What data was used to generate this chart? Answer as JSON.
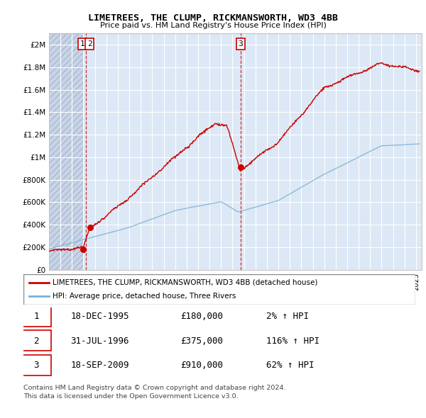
{
  "title": "LIMETREES, THE CLUMP, RICKMANSWORTH, WD3 4BB",
  "subtitle": "Price paid vs. HM Land Registry's House Price Index (HPI)",
  "ylim": [
    0,
    2100000
  ],
  "yticks": [
    0,
    200000,
    400000,
    600000,
    800000,
    1000000,
    1200000,
    1400000,
    1600000,
    1800000,
    2000000
  ],
  "ytick_labels": [
    "£0",
    "£200K",
    "£400K",
    "£600K",
    "£800K",
    "£1M",
    "£1.2M",
    "£1.4M",
    "£1.6M",
    "£1.8M",
    "£2M"
  ],
  "xlim_start": 1993.0,
  "xlim_end": 2025.5,
  "sale_dates": [
    1995.96,
    1996.58,
    2009.72
  ],
  "sale_prices": [
    180000,
    375000,
    910000
  ],
  "sale_labels": [
    "1",
    "2",
    "3"
  ],
  "red_line_color": "#cc0000",
  "blue_line_color": "#7ab0d4",
  "legend_line1": "LIMETREES, THE CLUMP, RICKMANSWORTH, WD3 4BB (detached house)",
  "legend_line2": "HPI: Average price, detached house, Three Rivers",
  "table_data": [
    [
      "1",
      "18-DEC-1995",
      "£180,000",
      "2% ↑ HPI"
    ],
    [
      "2",
      "31-JUL-1996",
      "£375,000",
      "116% ↑ HPI"
    ],
    [
      "3",
      "18-SEP-2009",
      "£910,000",
      "62% ↑ HPI"
    ]
  ],
  "footnote1": "Contains HM Land Registry data © Crown copyright and database right 2024.",
  "footnote2": "This data is licensed under the Open Government Licence v3.0.",
  "bg_color": "#dce8f5",
  "hatch_bg": "#c8d4e8"
}
